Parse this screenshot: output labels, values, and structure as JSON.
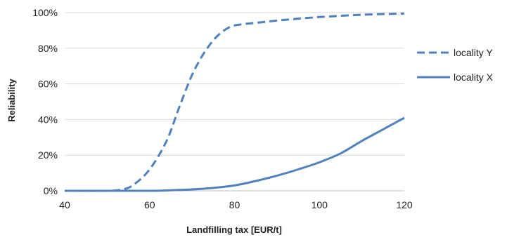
{
  "chart_data": {
    "type": "line",
    "title": "",
    "xlabel": "Landfilling tax [EUR/t]",
    "ylabel": "Reliability",
    "xlim": [
      40,
      120
    ],
    "ylim": [
      0,
      100
    ],
    "x_ticks": [
      "40",
      "60",
      "80",
      "100",
      "120"
    ],
    "y_ticks": [
      "0%",
      "20%",
      "40%",
      "60%",
      "80%",
      "100%"
    ],
    "grid": "horizontal",
    "legend_position": "right",
    "series_color": "#4F81BD",
    "series": [
      {
        "name": "locality Y",
        "style": "dashed",
        "x": [
          40,
          50,
          53,
          56,
          60,
          64,
          67,
          70,
          73,
          76,
          79,
          82,
          86,
          92,
          100,
          110,
          120
        ],
        "y": [
          0,
          0,
          0.5,
          3,
          12,
          28,
          47,
          65,
          78,
          87,
          92,
          93.5,
          94.5,
          96,
          97.5,
          98.8,
          99.5
        ]
      },
      {
        "name": "locality X",
        "style": "solid",
        "x": [
          40,
          60,
          65,
          70,
          75,
          80,
          85,
          90,
          95,
          100,
          105,
          110,
          115,
          120
        ],
        "y": [
          0,
          0,
          0.3,
          0.8,
          1.6,
          3,
          5.5,
          8.5,
          12,
          16,
          21,
          28,
          34.5,
          41
        ]
      }
    ]
  }
}
